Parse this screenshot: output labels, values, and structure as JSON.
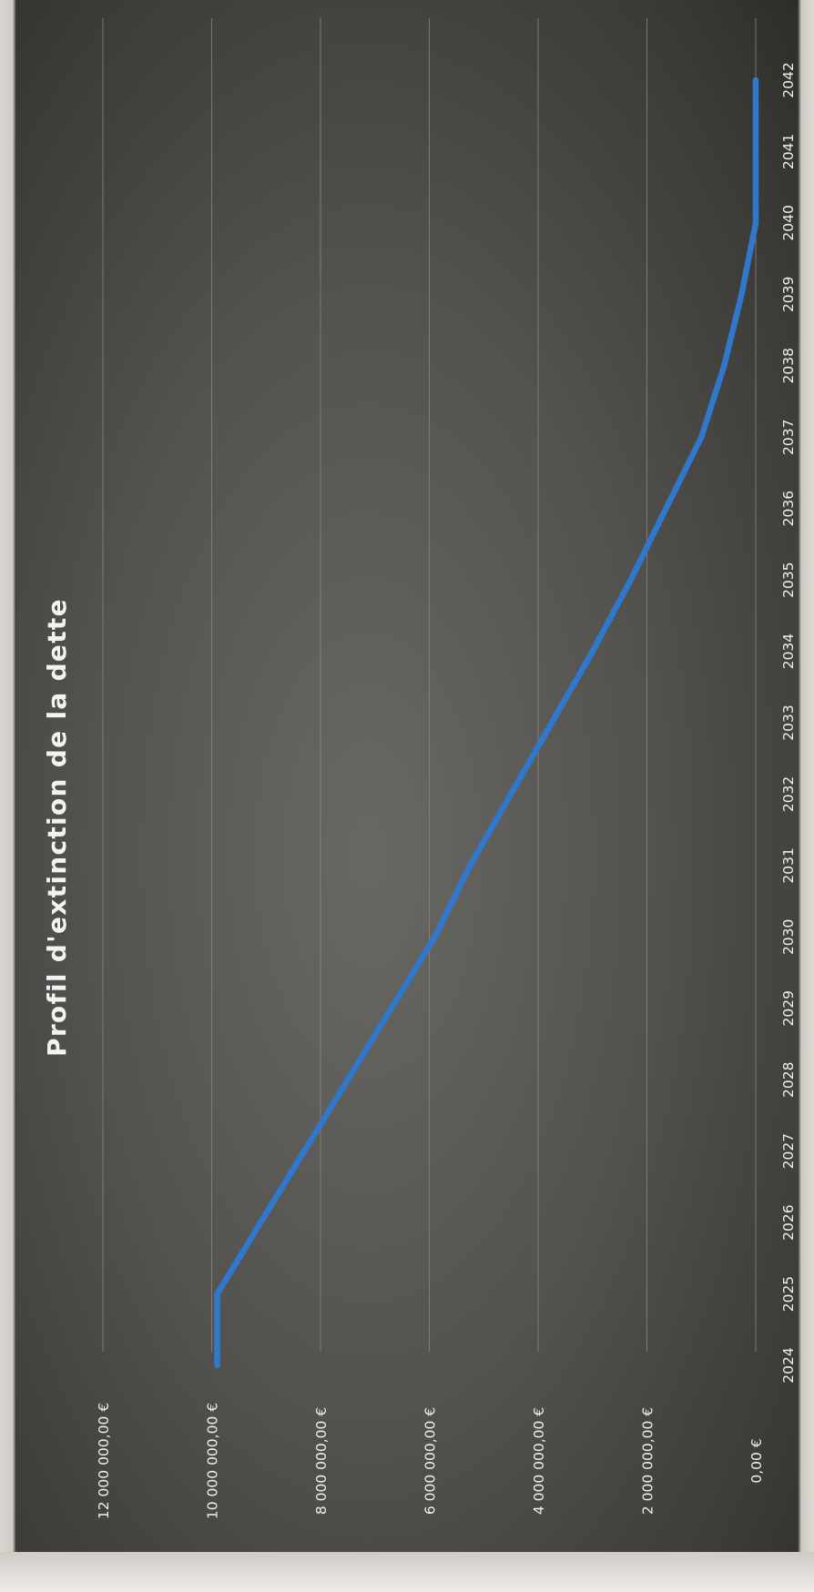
{
  "chart_data": {
    "type": "line",
    "title": "Profil d'extinction de la dette",
    "x": [
      "2024",
      "2025",
      "2026",
      "2027",
      "2028",
      "2029",
      "2030",
      "2031",
      "2032",
      "2033",
      "2034",
      "2035",
      "2036",
      "2037",
      "2038",
      "2039",
      "2040",
      "2041",
      "2042"
    ],
    "series": [
      {
        "values": [
          9900000,
          9900000,
          9100000,
          8300000,
          7500000,
          6700000,
          5900000,
          5250000,
          4500000,
          3750000,
          3000000,
          2300000,
          1650000,
          1000000,
          580000,
          260000,
          0,
          0,
          0
        ]
      }
    ],
    "y_ticks": [
      "0,00 €",
      "2 000 000,00 €",
      "4 000 000,00 €",
      "6 000 000,00 €",
      "8 000 000,00 €",
      "10 000 000,00 €",
      "12 000 000,00 €"
    ],
    "ylim": [
      0,
      12000000
    ],
    "grid": true,
    "legend": "none",
    "orientation": "rotated 90° clockwise (page scanned sideways)",
    "colors": {
      "line": "#2f78cc",
      "background": "#55534f",
      "grid": "#8d8a84",
      "text": "#efefef"
    }
  }
}
